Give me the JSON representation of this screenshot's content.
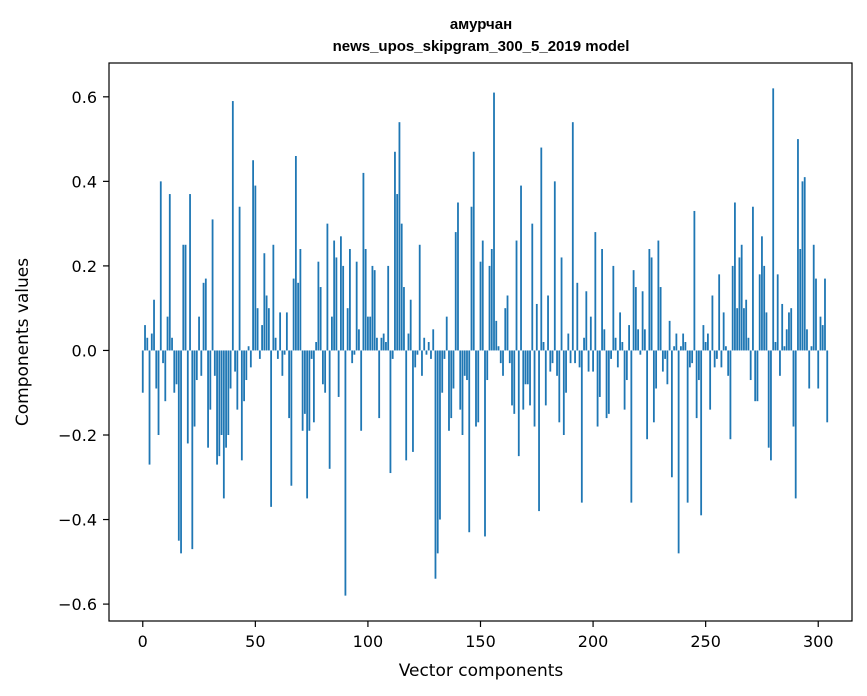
{
  "chart_data": {
    "type": "bar",
    "title_line1": "амурчан",
    "title_line2": "news_upos_skipgram_300_5_2019 model",
    "xlabel": "Vector components",
    "ylabel": "Components values",
    "xlim": [
      -15,
      315
    ],
    "ylim": [
      -0.64,
      0.68
    ],
    "xticks": [
      0,
      50,
      100,
      150,
      200,
      250,
      300
    ],
    "yticks": [
      -0.6,
      -0.4,
      -0.2,
      0.0,
      0.2,
      0.4,
      0.6
    ],
    "ytick_labels": [
      "−0.6",
      "−0.4",
      "−0.2",
      "0.0",
      "0.2",
      "0.4",
      "0.6"
    ],
    "grid": false,
    "bar_color": "#1f77b4",
    "values": [
      -0.1,
      0.06,
      0.03,
      -0.27,
      0.04,
      0.12,
      -0.09,
      -0.2,
      0.4,
      -0.03,
      -0.12,
      0.08,
      0.37,
      0.03,
      -0.1,
      -0.08,
      -0.45,
      -0.48,
      0.25,
      0.25,
      -0.22,
      0.37,
      -0.47,
      -0.18,
      -0.07,
      0.08,
      -0.06,
      0.16,
      0.17,
      -0.23,
      -0.14,
      0.31,
      -0.06,
      -0.27,
      -0.25,
      -0.2,
      -0.35,
      -0.23,
      -0.2,
      -0.09,
      0.59,
      -0.05,
      -0.14,
      0.34,
      -0.26,
      -0.12,
      -0.07,
      0.01,
      -0.04,
      0.45,
      0.39,
      0.1,
      -0.02,
      0.06,
      0.23,
      0.13,
      0.1,
      -0.37,
      0.25,
      0.03,
      -0.02,
      0.09,
      -0.06,
      -0.01,
      0.09,
      -0.16,
      -0.32,
      0.17,
      0.46,
      0.16,
      0.24,
      -0.19,
      -0.15,
      -0.35,
      -0.19,
      -0.02,
      -0.17,
      0.02,
      0.21,
      0.15,
      -0.08,
      -0.1,
      0.3,
      -0.28,
      0.08,
      0.26,
      0.22,
      -0.11,
      0.27,
      0.2,
      -0.58,
      0.1,
      0.24,
      -0.03,
      -0.01,
      0.21,
      0.05,
      -0.19,
      0.42,
      0.24,
      0.08,
      0.08,
      0.2,
      0.19,
      0.03,
      -0.16,
      0.03,
      0.04,
      0.02,
      0.2,
      -0.29,
      -0.02,
      0.47,
      0.37,
      0.54,
      0.3,
      0.15,
      -0.26,
      0.04,
      0.12,
      -0.24,
      -0.04,
      -0.01,
      0.25,
      -0.06,
      0.03,
      -0.01,
      0.02,
      -0.02,
      0.05,
      -0.54,
      -0.48,
      -0.4,
      -0.1,
      -0.02,
      0.08,
      -0.19,
      -0.16,
      -0.09,
      0.28,
      0.35,
      -0.14,
      -0.2,
      -0.06,
      -0.07,
      -0.43,
      0.34,
      0.47,
      -0.18,
      -0.17,
      0.21,
      0.26,
      -0.44,
      -0.07,
      0.2,
      0.24,
      0.61,
      0.07,
      0.01,
      -0.03,
      -0.06,
      0.1,
      0.13,
      -0.03,
      -0.13,
      -0.15,
      0.26,
      -0.25,
      0.39,
      -0.14,
      -0.08,
      -0.08,
      -0.13,
      0.3,
      -0.18,
      0.11,
      -0.38,
      0.48,
      0.02,
      -0.13,
      0.13,
      -0.05,
      -0.03,
      0.4,
      -0.06,
      -0.17,
      0.22,
      -0.2,
      -0.1,
      0.04,
      -0.03,
      0.54,
      -0.03,
      0.16,
      -0.04,
      -0.36,
      0.03,
      0.14,
      -0.05,
      0.08,
      -0.05,
      0.28,
      -0.18,
      -0.11,
      0.24,
      0.05,
      -0.16,
      -0.15,
      -0.02,
      0.2,
      0.03,
      -0.04,
      0.09,
      0.02,
      -0.14,
      -0.07,
      0.06,
      -0.36,
      0.19,
      0.15,
      0.05,
      -0.01,
      0.14,
      0.05,
      -0.21,
      0.24,
      0.22,
      -0.17,
      -0.09,
      0.26,
      0.15,
      -0.05,
      -0.02,
      -0.08,
      0.07,
      -0.3,
      0.01,
      0.04,
      -0.48,
      0.01,
      0.04,
      0.02,
      -0.36,
      -0.04,
      -0.03,
      0.33,
      -0.16,
      -0.07,
      -0.39,
      0.06,
      0.02,
      0.04,
      -0.14,
      0.13,
      -0.04,
      -0.02,
      0.18,
      -0.04,
      0.09,
      0.01,
      -0.06,
      -0.21,
      0.2,
      0.35,
      0.1,
      0.22,
      0.25,
      0.1,
      0.12,
      0.03,
      -0.07,
      0.34,
      -0.12,
      -0.12,
      0.18,
      0.27,
      0.2,
      0.09,
      -0.23,
      -0.26,
      0.62,
      0.02,
      0.18,
      -0.06,
      0.11,
      0.01,
      0.05,
      0.09,
      0.1,
      -0.18,
      -0.35,
      0.5,
      0.24,
      0.4,
      0.41,
      0.05,
      -0.09,
      0.01,
      0.25,
      0.17,
      -0.09,
      0.08,
      0.06,
      0.17,
      -0.17
    ]
  }
}
